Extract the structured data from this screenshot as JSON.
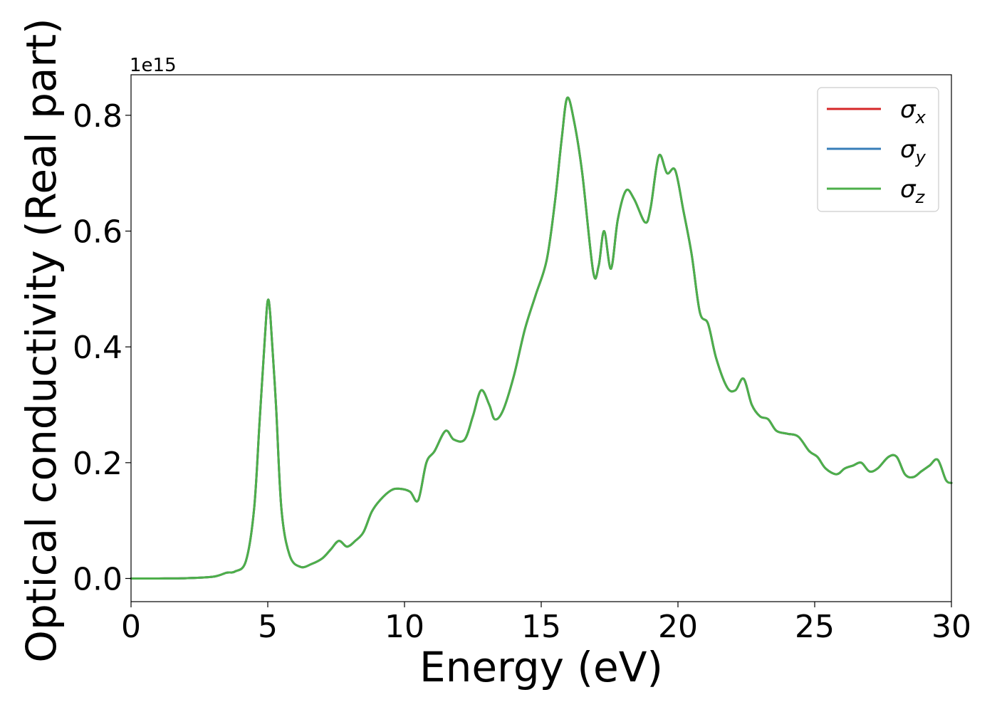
{
  "chart_data": {
    "type": "line",
    "title": "",
    "xlabel": "Energy (eV)",
    "ylabel": "Optical conductivity (Real part)",
    "offset_text": "1e15",
    "xlim": [
      0,
      30
    ],
    "ylim": [
      -0.04,
      0.87
    ],
    "x_ticks": [
      0,
      5,
      10,
      15,
      20,
      25,
      30
    ],
    "y_ticks": [
      0.0,
      0.2,
      0.4,
      0.6,
      0.8
    ],
    "x_tick_labels": [
      "0",
      "5",
      "10",
      "15",
      "20",
      "25",
      "30"
    ],
    "y_tick_labels": [
      "0.0",
      "0.2",
      "0.4",
      "0.6",
      "0.8"
    ],
    "grid": false,
    "legend_position": "top-right",
    "x": [
      0,
      1,
      2,
      3,
      3.5,
      3.8,
      4.2,
      4.5,
      4.7,
      4.9,
      5.0,
      5.1,
      5.3,
      5.5,
      5.8,
      6.2,
      6.6,
      7.0,
      7.3,
      7.6,
      7.9,
      8.2,
      8.5,
      8.8,
      9.1,
      9.5,
      9.8,
      10.2,
      10.5,
      10.8,
      11.1,
      11.5,
      11.8,
      12.2,
      12.5,
      12.8,
      13.1,
      13.3,
      13.6,
      14.0,
      14.4,
      14.8,
      15.2,
      15.5,
      15.75,
      15.95,
      16.2,
      16.5,
      16.9,
      17.1,
      17.3,
      17.55,
      17.8,
      18.1,
      18.4,
      18.8,
      19.0,
      19.3,
      19.6,
      19.9,
      20.2,
      20.5,
      20.8,
      21.1,
      21.4,
      21.8,
      22.1,
      22.4,
      22.7,
      23.0,
      23.3,
      23.6,
      24.0,
      24.4,
      24.8,
      25.1,
      25.4,
      25.8,
      26.1,
      26.4,
      26.7,
      27.0,
      27.3,
      27.7,
      28.0,
      28.3,
      28.6,
      28.9,
      29.2,
      29.5,
      29.8,
      30.0
    ],
    "series": [
      {
        "name": "σx",
        "color": "#d62728",
        "values": [
          0.0,
          0.0,
          0.0005,
          0.003,
          0.01,
          0.012,
          0.03,
          0.12,
          0.27,
          0.42,
          0.48,
          0.45,
          0.3,
          0.12,
          0.04,
          0.02,
          0.025,
          0.035,
          0.05,
          0.065,
          0.055,
          0.065,
          0.08,
          0.115,
          0.135,
          0.152,
          0.155,
          0.15,
          0.135,
          0.2,
          0.22,
          0.255,
          0.24,
          0.24,
          0.28,
          0.325,
          0.3,
          0.275,
          0.29,
          0.35,
          0.43,
          0.49,
          0.55,
          0.65,
          0.76,
          0.83,
          0.79,
          0.7,
          0.53,
          0.54,
          0.6,
          0.535,
          0.62,
          0.67,
          0.655,
          0.615,
          0.64,
          0.73,
          0.7,
          0.705,
          0.635,
          0.56,
          0.46,
          0.44,
          0.38,
          0.33,
          0.325,
          0.345,
          0.3,
          0.28,
          0.275,
          0.255,
          0.25,
          0.245,
          0.22,
          0.21,
          0.19,
          0.18,
          0.19,
          0.195,
          0.2,
          0.185,
          0.19,
          0.21,
          0.21,
          0.18,
          0.175,
          0.185,
          0.195,
          0.205,
          0.17,
          0.165
        ]
      },
      {
        "name": "σy",
        "color": "#377eb8",
        "values": [
          0.0,
          0.0,
          0.0005,
          0.003,
          0.01,
          0.012,
          0.03,
          0.12,
          0.27,
          0.42,
          0.48,
          0.45,
          0.3,
          0.12,
          0.04,
          0.02,
          0.025,
          0.035,
          0.05,
          0.065,
          0.055,
          0.065,
          0.08,
          0.115,
          0.135,
          0.152,
          0.155,
          0.15,
          0.135,
          0.2,
          0.22,
          0.255,
          0.24,
          0.24,
          0.28,
          0.325,
          0.3,
          0.275,
          0.29,
          0.35,
          0.43,
          0.49,
          0.55,
          0.65,
          0.76,
          0.83,
          0.79,
          0.7,
          0.53,
          0.54,
          0.6,
          0.535,
          0.62,
          0.67,
          0.655,
          0.615,
          0.64,
          0.73,
          0.7,
          0.705,
          0.635,
          0.56,
          0.46,
          0.44,
          0.38,
          0.33,
          0.325,
          0.345,
          0.3,
          0.28,
          0.275,
          0.255,
          0.25,
          0.245,
          0.22,
          0.21,
          0.19,
          0.18,
          0.19,
          0.195,
          0.2,
          0.185,
          0.19,
          0.21,
          0.21,
          0.18,
          0.175,
          0.185,
          0.195,
          0.205,
          0.17,
          0.165
        ]
      },
      {
        "name": "σz",
        "color": "#4daf4a",
        "values": [
          0.0,
          0.0,
          0.0005,
          0.003,
          0.01,
          0.012,
          0.03,
          0.12,
          0.27,
          0.42,
          0.48,
          0.45,
          0.3,
          0.12,
          0.04,
          0.02,
          0.025,
          0.035,
          0.05,
          0.065,
          0.055,
          0.065,
          0.08,
          0.115,
          0.135,
          0.152,
          0.155,
          0.15,
          0.135,
          0.2,
          0.22,
          0.255,
          0.24,
          0.24,
          0.28,
          0.325,
          0.3,
          0.275,
          0.29,
          0.35,
          0.43,
          0.49,
          0.55,
          0.65,
          0.76,
          0.83,
          0.79,
          0.7,
          0.53,
          0.54,
          0.6,
          0.535,
          0.62,
          0.67,
          0.655,
          0.615,
          0.64,
          0.73,
          0.7,
          0.705,
          0.635,
          0.56,
          0.46,
          0.44,
          0.38,
          0.33,
          0.325,
          0.345,
          0.3,
          0.28,
          0.275,
          0.255,
          0.25,
          0.245,
          0.22,
          0.21,
          0.19,
          0.18,
          0.19,
          0.195,
          0.2,
          0.185,
          0.19,
          0.21,
          0.21,
          0.18,
          0.175,
          0.185,
          0.195,
          0.205,
          0.17,
          0.165
        ]
      }
    ],
    "legend": [
      {
        "symbol": "σ",
        "subscript": "x",
        "color": "#d62728"
      },
      {
        "symbol": "σ",
        "subscript": "y",
        "color": "#377eb8"
      },
      {
        "symbol": "σ",
        "subscript": "z",
        "color": "#4daf4a"
      }
    ]
  }
}
